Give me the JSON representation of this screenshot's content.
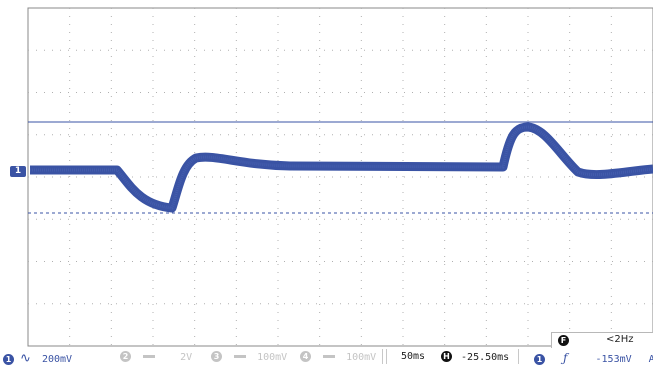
{
  "colors": {
    "trace": "#3a53a4",
    "grid": "#b0b0b0",
    "inactive": "#c4c4c4"
  },
  "channel_marker": {
    "label": "1"
  },
  "status_bar": {
    "ch1": {
      "badge": "1",
      "coupling_icon": "ac-coupling-icon",
      "scale": "200mV"
    },
    "ch2": {
      "badge": "2",
      "coupling_icon": "dc-coupling-icon",
      "scale": "2V"
    },
    "ch3": {
      "badge": "3",
      "coupling_icon": "dc-coupling-icon",
      "scale": "100mV"
    },
    "ch4": {
      "badge": "4",
      "coupling_icon": "dc-coupling-icon",
      "scale": "100mV"
    },
    "timebase": "50ms",
    "horizontal": {
      "badge": "H",
      "position": "-25.50ms"
    },
    "trigger": {
      "source_badge": "1",
      "edge_icon": "rising-edge-icon",
      "edge_glyph": "ƒ",
      "level": "-153mV",
      "mode": "A"
    }
  },
  "frequency_readout": {
    "badge": "F",
    "value": "<2Hz"
  },
  "coupling_glyph_ac": "∿"
}
